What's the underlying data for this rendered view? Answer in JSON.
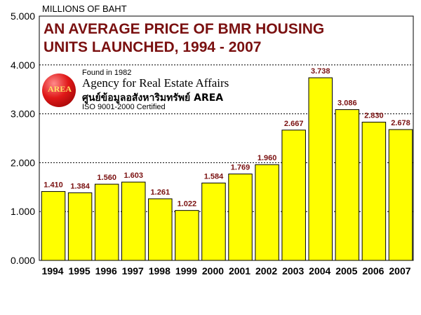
{
  "unit_label": "MILLIONS OF BAHT",
  "logo": {
    "emblem_text": "AREA",
    "founded": "Found in 1982",
    "name": "Agency for Real Estate Affairs",
    "thai_name": "ศูนย์ข้อมูลอสังหาริมทรัพย์ AREA",
    "certification": "ISO 9001-2000 Certified"
  },
  "chart_data": {
    "type": "bar",
    "title": "AN AVERAGE PRICE OF BMR HOUSING UNITS LAUNCHED, 1994 - 2007",
    "title_line1": "AN AVERAGE PRICE OF BMR HOUSING",
    "title_line2": "UNITS LAUNCHED, 1994 - 2007",
    "xlabel": "",
    "ylabel": "",
    "categories": [
      "1994",
      "1995",
      "1996",
      "1997",
      "1998",
      "1999",
      "2000",
      "2001",
      "2002",
      "2003",
      "2004",
      "2005",
      "2006",
      "2007"
    ],
    "values": [
      1.41,
      1.384,
      1.56,
      1.603,
      1.261,
      1.022,
      1.584,
      1.769,
      1.96,
      2.667,
      3.738,
      3.086,
      2.83,
      2.678
    ],
    "value_labels": [
      "1.410",
      "1.384",
      "1.560",
      "1.603",
      "1.261",
      "1.022",
      "1.584",
      "1.769",
      "1.960",
      "2.667",
      "3.738",
      "3.086",
      "2.830",
      "2.678"
    ],
    "yticks": [
      "0.000",
      "1.000",
      "2.000",
      "3.000",
      "4.000",
      "5.000"
    ],
    "ylim": [
      0,
      5
    ],
    "grid": true,
    "bar_color": "#ffff00",
    "label_color": "#7a1010",
    "grid_color": "#000000"
  }
}
